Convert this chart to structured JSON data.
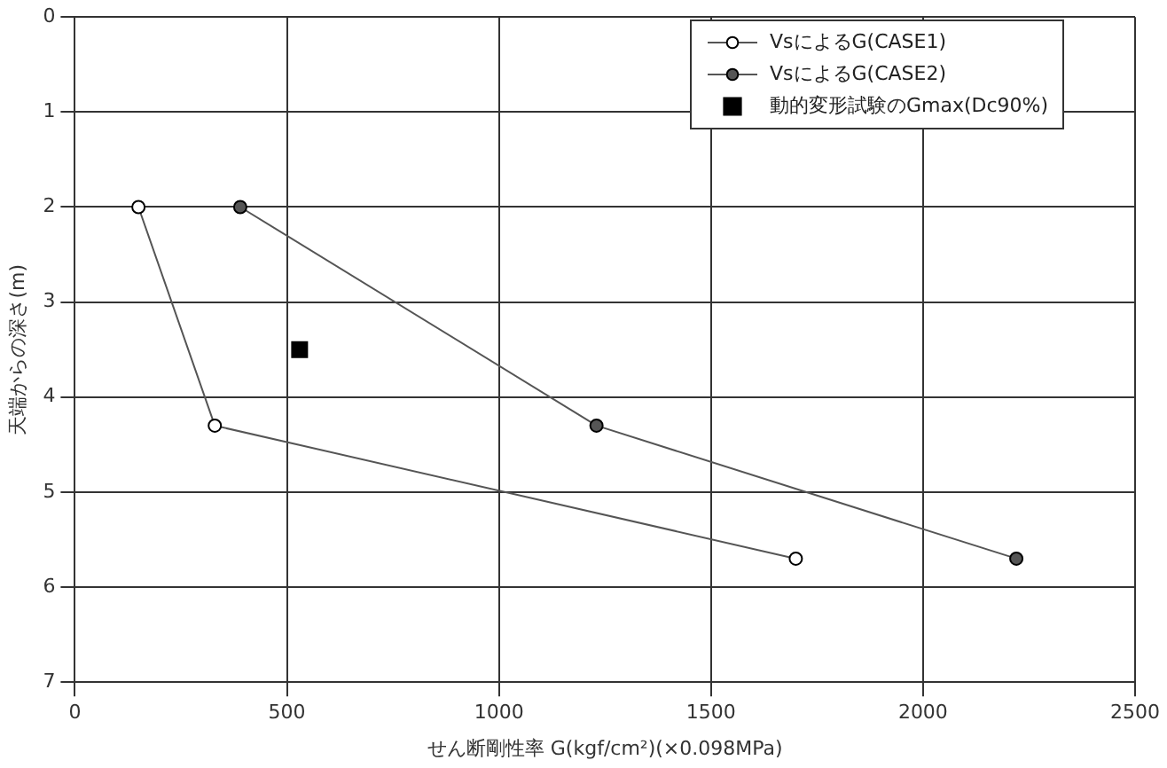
{
  "chart_data": {
    "type": "line",
    "xlabel": "せん断剛性率 G(kgf/cm²)(×0.098MPa)",
    "ylabel": "天端からの深さ(m)",
    "xlim": [
      0,
      2500
    ],
    "xticks": [
      0,
      500,
      1000,
      1500,
      2000,
      2500
    ],
    "ylim": [
      7,
      0
    ],
    "yticks": [
      0,
      1,
      2,
      3,
      4,
      5,
      6,
      7
    ],
    "grid": true,
    "legend": "top right",
    "series": [
      {
        "name": "VsによるG(CASE1)",
        "color": "#555555",
        "marker": "circle",
        "x": [
          150,
          330,
          1700
        ],
        "values": [
          2,
          4.3,
          5.7
        ]
      },
      {
        "name": "VsによるG(CASE2)",
        "color": "#555555",
        "marker": "circle",
        "x": [
          390,
          1230,
          2220
        ],
        "values": [
          2,
          4.3,
          5.7
        ]
      },
      {
        "name": "動的変形試験のGmax(Dc90%)",
        "type": "scatter",
        "color": "#000000",
        "marker": "square",
        "x": [
          530
        ],
        "values": [
          3.5
        ]
      }
    ]
  }
}
